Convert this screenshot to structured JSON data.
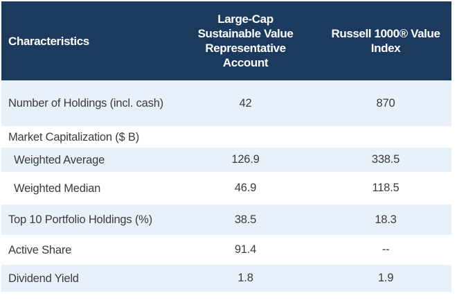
{
  "table": {
    "header": {
      "characteristics": "Characteristics",
      "account_column": "Large-Cap Sustainable Value Representative Account",
      "index_column": "Russell 1000® Value Index"
    },
    "rows": [
      {
        "label": "Number of Holdings (incl. cash)",
        "account": "42",
        "index": "870"
      },
      {
        "label": "Market Capitalization ($ B)",
        "account": "",
        "index": ""
      },
      {
        "label": "Weighted Average",
        "account": "126.9",
        "index": "338.5"
      },
      {
        "label": "Weighted Median",
        "account": "46.9",
        "index": "118.5"
      },
      {
        "label": "Top 10 Portfolio Holdings (%)",
        "account": "38.5",
        "index": "18.3"
      },
      {
        "label": "Active Share",
        "account": "91.4",
        "index": "--"
      },
      {
        "label": "Dividend Yield",
        "account": "1.8",
        "index": "1.9"
      }
    ],
    "colors": {
      "header_bg": "#1c3a5e",
      "header_text": "#ffffff",
      "row_alt_bg": "#e8f1fa",
      "row_bg": "#ffffff",
      "body_text": "#3b3b3b"
    }
  }
}
